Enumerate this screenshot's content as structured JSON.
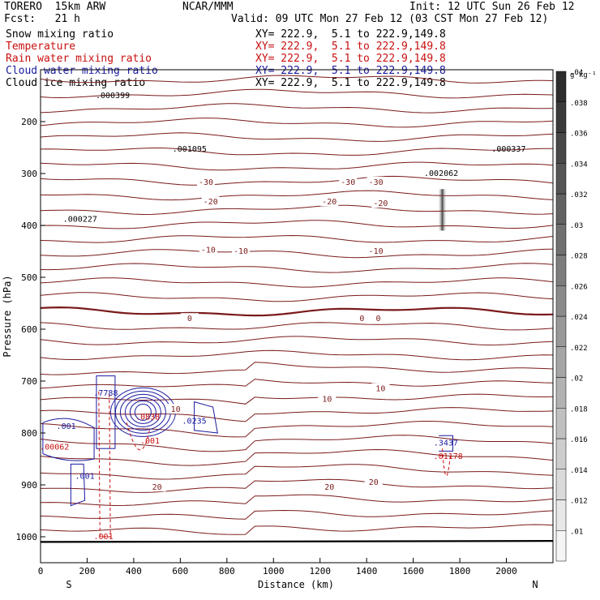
{
  "header": {
    "model": "TORERO  15km ARW",
    "center": "NCAR/MMM",
    "init": "Init: 12 UTC Sun 26 Feb 12",
    "fcst": "Fcst:   21 h",
    "valid": "Valid: 09 UTC Mon 27 Feb 12 (03 CST Mon 27 Feb 12)"
  },
  "fields": [
    {
      "name": "Snow mixing ratio",
      "xy": "XY= 222.9,  5.1 to 222.9,149.8",
      "color": "#000000"
    },
    {
      "name": "Temperature",
      "xy": "XY= 222.9,  5.1 to 222.9,149.8",
      "color": "#c81010"
    },
    {
      "name": "Rain water mixing ratio",
      "xy": "XY= 222.9,  5.1 to 222.9,149.8",
      "color": "#c81010"
    },
    {
      "name": "Cloud water mixing ratio",
      "xy": "XY= 222.9,  5.1 to 222.9,149.8",
      "color": "#1a1aa0"
    },
    {
      "name": "Cloud ice mixing ratio",
      "xy": "XY= 222.9,  5.1 to 222.9,149.8",
      "color": "#000000"
    }
  ],
  "chart_data": {
    "type": "cross-section",
    "xlabel": "Distance (km)",
    "ylabel": "Pressure (hPa)",
    "xlim": [
      0,
      2200
    ],
    "ylim": [
      1050,
      100
    ],
    "xticks": [
      0,
      200,
      400,
      600,
      800,
      1000,
      1200,
      1400,
      1600,
      1800,
      2000
    ],
    "yticks": [
      200,
      300,
      400,
      500,
      600,
      700,
      800,
      900,
      1000
    ],
    "x_end_labels": {
      "left": "S",
      "right": "N"
    },
    "colorbar": {
      "unit": "g kg⁻¹",
      "ticks": [
        ".01",
        ".012",
        ".014",
        ".016",
        ".018",
        ".02",
        ".022",
        ".024",
        ".026",
        ".028",
        ".03",
        ".032",
        ".034",
        ".036",
        ".038",
        ".04"
      ]
    },
    "temperature_labels": [
      {
        "text": "-30",
        "x": 710,
        "p": 317
      },
      {
        "text": "-30",
        "x": 1320,
        "p": 317
      },
      {
        "text": "-30",
        "x": 1440,
        "p": 317
      },
      {
        "text": "-20",
        "x": 730,
        "p": 355
      },
      {
        "text": "-20",
        "x": 1240,
        "p": 355
      },
      {
        "text": "-20",
        "x": 1460,
        "p": 358
      },
      {
        "text": "-10",
        "x": 720,
        "p": 448
      },
      {
        "text": "-10",
        "x": 860,
        "p": 450
      },
      {
        "text": "-10",
        "x": 1440,
        "p": 450
      },
      {
        "text": "0",
        "x": 640,
        "p": 580
      },
      {
        "text": "0",
        "x": 1380,
        "p": 580
      },
      {
        "text": "0",
        "x": 1450,
        "p": 580
      },
      {
        "text": "10",
        "x": 580,
        "p": 755
      },
      {
        "text": "10",
        "x": 1230,
        "p": 735
      },
      {
        "text": "10",
        "x": 1460,
        "p": 715
      },
      {
        "text": "20",
        "x": 500,
        "p": 905
      },
      {
        "text": "20",
        "x": 1240,
        "p": 905
      },
      {
        "text": "20",
        "x": 1430,
        "p": 895
      }
    ],
    "maxima": [
      {
        "text": ".000399",
        "x": 310,
        "p": 155,
        "color": "#000000"
      },
      {
        "text": ".001095",
        "x": 640,
        "p": 258,
        "color": "#000000"
      },
      {
        "text": ".000337",
        "x": 2010,
        "p": 258,
        "color": "#000000"
      },
      {
        "text": ".002062",
        "x": 1720,
        "p": 305,
        "color": "#000000"
      },
      {
        "text": ".000227",
        "x": 170,
        "p": 393,
        "color": "#000000"
      },
      {
        "text": ".7788",
        "x": 280,
        "p": 728,
        "color": "#1a1aa0"
      },
      {
        "text": ".0235",
        "x": 660,
        "p": 782,
        "color": "#1a1aa0"
      },
      {
        "text": ".001",
        "x": 110,
        "p": 792,
        "color": "#1a1aa0"
      },
      {
        "text": ".001",
        "x": 190,
        "p": 888,
        "color": "#1a1aa0"
      },
      {
        "text": ".3437",
        "x": 1740,
        "p": 824,
        "color": "#1a1aa0"
      },
      {
        "text": ".00062",
        "x": 60,
        "p": 832,
        "color": "#c81010"
      },
      {
        "text": ".001",
        "x": 470,
        "p": 820,
        "color": "#c81010"
      },
      {
        "text": ".01178",
        "x": 1750,
        "p": 850,
        "color": "#c81010"
      },
      {
        "text": ".001",
        "x": 270,
        "p": 1005,
        "color": "#c81010"
      },
      {
        "text": ".0838",
        "x": 460,
        "p": 774,
        "color": "#c81010"
      }
    ]
  }
}
